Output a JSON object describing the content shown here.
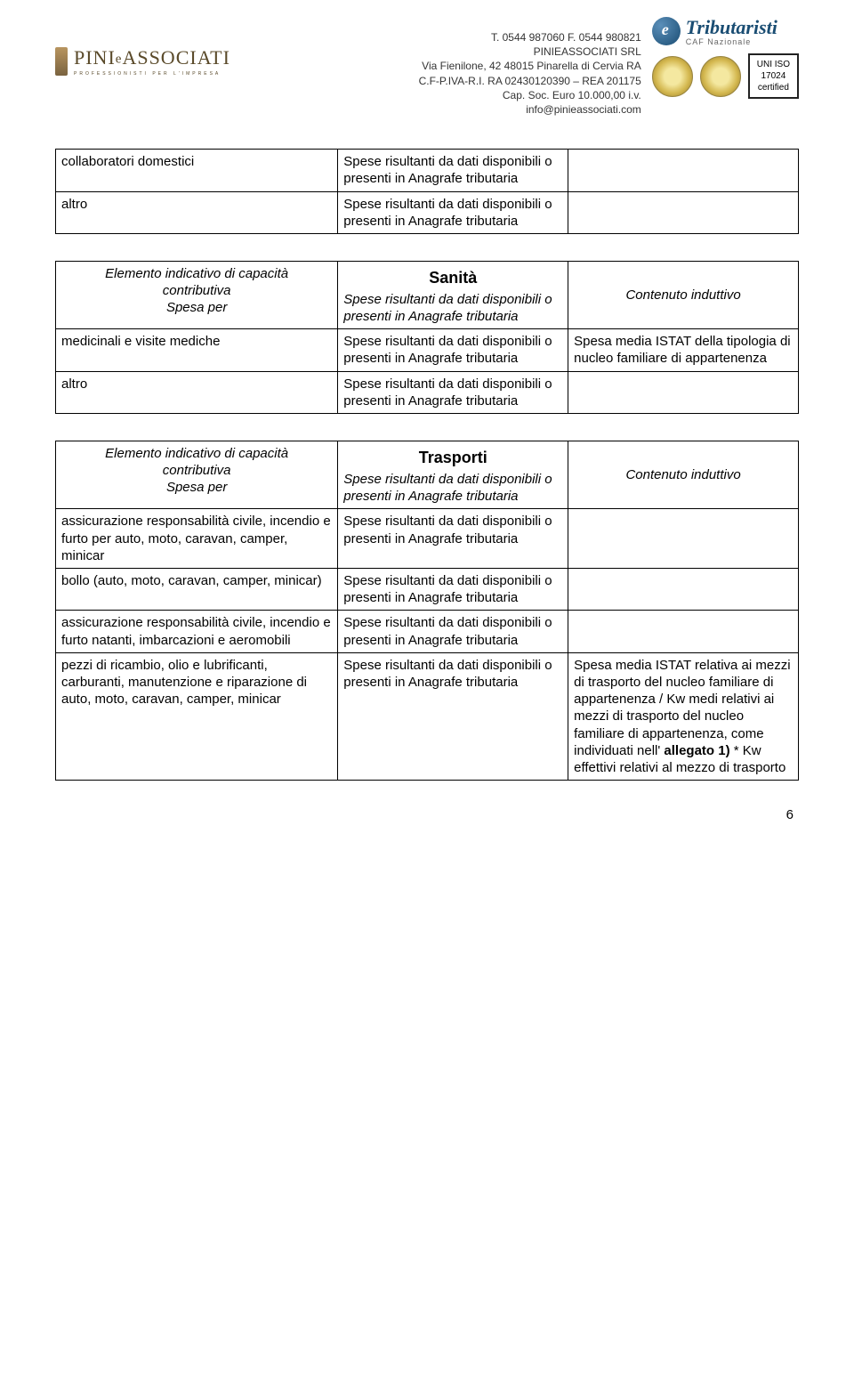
{
  "header": {
    "company_lines": [
      "T. 0544 987060 F. 0544 980821",
      "PINIEASSOCIATI SRL",
      "Via Fienilone, 42 48015 Pinarella di Cervia RA",
      "C.F-P.IVA-R.I. RA 02430120390 – REA 201175",
      "Cap. Soc. Euro 10.000,00 i.v.",
      "info@pinieassociati.com"
    ],
    "logo_main": "PINI",
    "logo_amp": "e",
    "logo_rest": "ASSOCIATI",
    "logo_sub": "PROFESSIONISTI PER L'IMPRESA",
    "trib_text": "Tributaristi",
    "trib_sub": "CAF Nazionale",
    "iso_l1": "UNI ISO",
    "iso_l2": "17024",
    "iso_l3": "certified"
  },
  "table1": {
    "rows": [
      {
        "c1": "collaboratori domestici",
        "c2": "Spese risultanti da dati disponibili o presenti in Anagrafe tributaria",
        "c3": ""
      },
      {
        "c1": "altro",
        "c2": "Spese risultanti da dati disponibili o presenti in Anagrafe tributaria",
        "c3": ""
      }
    ]
  },
  "table2": {
    "title": "Sanità",
    "head": {
      "c1a": "Elemento indicativo di capacità",
      "c1b": "contributiva",
      "c1c": "Spesa per",
      "c2": "Spese risultanti da dati disponibili o presenti in Anagrafe tributaria",
      "c3": "Contenuto induttivo"
    },
    "rows": [
      {
        "c1": "medicinali e visite mediche",
        "c2": "Spese risultanti da dati disponibili o presenti in Anagrafe tributaria",
        "c3": "Spesa media ISTAT della tipologia di nucleo familiare di appartenenza"
      },
      {
        "c1": "altro",
        "c2": "Spese risultanti da dati disponibili o presenti in Anagrafe tributaria",
        "c3": ""
      }
    ]
  },
  "table3": {
    "title": "Trasporti",
    "head": {
      "c1a": "Elemento indicativo di capacità",
      "c1b": "contributiva",
      "c1c": "Spesa per",
      "c2": "Spese risultanti da dati disponibili o presenti in Anagrafe tributaria",
      "c3": "Contenuto induttivo"
    },
    "rows": [
      {
        "c1": "assicurazione responsabilità civile, incendio e furto per auto, moto, caravan, camper, minicar",
        "c2": "Spese risultanti da dati disponibili o presenti in Anagrafe tributaria",
        "c3": ""
      },
      {
        "c1": "bollo (auto, moto, caravan, camper, minicar)",
        "c2": "Spese risultanti da dati disponibili o presenti in Anagrafe tributaria",
        "c3": ""
      },
      {
        "c1": "assicurazione responsabilità civile, incendio e furto natanti, imbarcazioni e aeromobili",
        "c2": "Spese risultanti da dati disponibili o presenti in Anagrafe tributaria",
        "c3": ""
      },
      {
        "c1": "pezzi di ricambio, olio e lubrificanti, carburanti, manutenzione e riparazione di auto, moto, caravan, camper, minicar",
        "c2": "Spese risultanti da dati disponibili o presenti in Anagrafe tributaria",
        "c3_pre": "Spesa media ISTAT relativa ai mezzi di trasporto del nucleo familiare di appartenenza / Kw medi relativi ai mezzi di trasporto del nucleo familiare di appartenenza, come individuati nell' ",
        "c3_bold": "allegato 1)",
        "c3_post": " * Kw effettivi relativi al mezzo di trasporto"
      }
    ]
  },
  "page_number": "6"
}
